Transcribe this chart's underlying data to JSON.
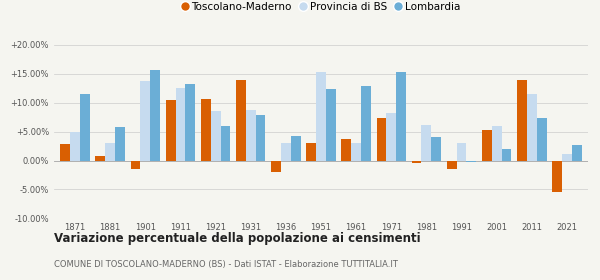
{
  "years": [
    1871,
    1881,
    1901,
    1911,
    1921,
    1931,
    1936,
    1951,
    1961,
    1971,
    1981,
    1991,
    2001,
    2011,
    2021
  ],
  "toscolano": [
    2.8,
    0.7,
    -1.5,
    10.4,
    10.6,
    14.0,
    -2.0,
    3.0,
    3.7,
    7.4,
    -0.5,
    -1.5,
    5.2,
    14.0,
    -5.5
  ],
  "provincia_bs": [
    5.0,
    3.0,
    13.8,
    12.6,
    8.6,
    8.8,
    3.0,
    15.3,
    3.0,
    8.2,
    6.2,
    3.0,
    6.0,
    11.5,
    1.2
  ],
  "lombardia": [
    11.5,
    5.8,
    15.7,
    13.2,
    6.0,
    7.9,
    4.3,
    12.4,
    12.8,
    15.3,
    4.0,
    -0.2,
    2.0,
    7.3,
    2.6
  ],
  "color_toscolano": "#d95f02",
  "color_provincia": "#c6dbef",
  "color_lombardia": "#6baed6",
  "title": "Variazione percentuale della popolazione ai censimenti",
  "subtitle": "COMUNE DI TOSCOLANO-MADERNO (BS) - Dati ISTAT - Elaborazione TUTTITALIA.IT",
  "ylim": [
    -10.0,
    20.0
  ],
  "yticks": [
    -10.0,
    -5.0,
    0.0,
    5.0,
    10.0,
    15.0,
    20.0
  ],
  "ytick_labels": [
    "-10.00%",
    "-5.00%",
    "0.00%",
    "+5.00%",
    "+10.00%",
    "+15.00%",
    "+20.00%"
  ],
  "bg_color": "#f5f5f0",
  "bar_width": 0.28,
  "legend_labels": [
    "Toscolano-Maderno",
    "Provincia di BS",
    "Lombardia"
  ]
}
